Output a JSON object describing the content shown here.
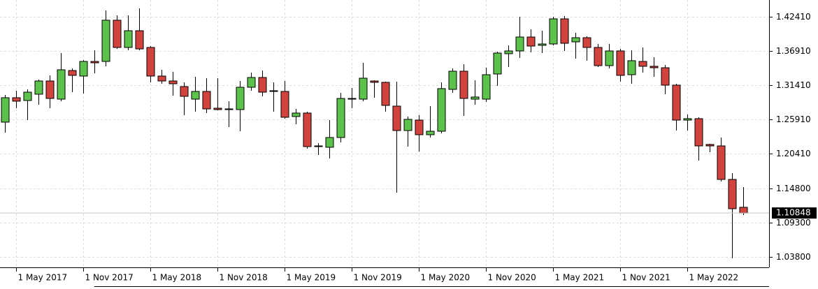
{
  "chart_data": {
    "type": "candlestick",
    "categories": [
      null,
      "1 May 2017",
      null,
      null,
      null,
      null,
      null,
      "1 Nov 2017",
      null,
      null,
      null,
      null,
      null,
      "1 May 2018",
      null,
      null,
      null,
      null,
      null,
      "1 Nov 2018",
      null,
      null,
      null,
      null,
      null,
      "1 May 2019",
      null,
      null,
      null,
      null,
      null,
      "1 Nov 2019",
      null,
      null,
      null,
      null,
      null,
      "1 May 2020",
      null,
      null,
      null,
      null,
      null,
      "1 Nov 2020",
      null,
      null,
      null,
      null,
      null,
      "1 May 2021",
      null,
      null,
      null,
      null,
      null,
      "1 Nov 2021",
      null,
      null,
      null,
      null,
      null,
      "1 May 2022",
      null,
      null,
      null,
      null,
      null
    ],
    "open": [
      1.2546,
      1.2939,
      1.2894,
      1.2995,
      1.3208,
      1.2916,
      1.3376,
      1.3287,
      1.3522,
      1.3522,
      1.4185,
      1.3747,
      1.4016,
      1.3747,
      1.3287,
      1.3208,
      1.3118,
      1.2916,
      1.304,
      1.277,
      1.2759,
      1.2748,
      1.3107,
      1.3264,
      1.3051,
      1.304,
      1.2636,
      1.2692,
      1.2153,
      1.2142,
      1.2299,
      1.2916,
      1.2916,
      1.3208,
      1.3186,
      1.2804,
      1.2411,
      1.2579,
      1.2344,
      1.24,
      1.3073,
      1.3365,
      1.2916,
      1.2916,
      1.332,
      1.3646,
      1.3691,
      1.3915,
      1.3781,
      1.3803,
      1.4207,
      1.3837,
      1.3904,
      1.3747,
      1.3455,
      1.3691,
      1.3309,
      1.3522,
      1.3444,
      1.3421,
      1.3141,
      1.2579,
      1.2602,
      1.2187,
      1.2164,
      1.1625,
      1.1177
    ],
    "high": [
      1.2984,
      1.3051,
      1.3073,
      1.3231,
      1.3298,
      1.3657,
      1.341,
      1.3545,
      1.3702,
      1.4342,
      1.4263,
      1.4263,
      1.4376,
      1.3769,
      1.3388,
      1.3354,
      1.3186,
      1.3275,
      1.3253,
      1.3253,
      1.2883,
      1.3208,
      1.3343,
      1.3376,
      1.3186,
      1.3208,
      1.2759,
      1.2714,
      1.2209,
      1.2579,
      1.3017,
      1.3096,
      1.35,
      1.3219,
      1.3197,
      1.3197,
      1.2636,
      1.2658,
      1.2804,
      1.3186,
      1.341,
      1.3477,
      1.3219,
      1.3421,
      1.368,
      1.3781,
      1.4241,
      1.4039,
      1.4016,
      1.4241,
      1.4252,
      1.3983,
      1.3926,
      1.3803,
      1.3803,
      1.3724,
      1.3702,
      1.3747,
      1.359,
      1.3466,
      1.3163,
      1.2669,
      1.2624,
      1.2198,
      1.2299,
      1.1726,
      1.1502
    ],
    "low": [
      1.2377,
      1.277,
      1.2579,
      1.2826,
      1.277,
      1.2883,
      1.3028,
      1.3006,
      1.3331,
      1.3444,
      1.3724,
      1.3702,
      1.3702,
      1.3186,
      1.3163,
      1.2972,
      1.2658,
      1.2714,
      1.2692,
      1.2737,
      1.2467,
      1.24,
      1.3051,
      1.2961,
      1.2714,
      1.2602,
      1.2512,
      1.2119,
      1.2018,
      1.1962,
      1.222,
      1.277,
      1.2883,
      1.2939,
      1.2714,
      1.1412,
      1.2153,
      1.2074,
      1.2299,
      1.2366,
      1.3017,
      1.2647,
      1.2826,
      1.2871,
      1.3129,
      1.3432,
      1.3578,
      1.3668,
      1.3657,
      1.3781,
      1.3691,
      1.3567,
      1.3534,
      1.3432,
      1.341,
      1.3197,
      1.3163,
      1.3343,
      1.3275,
      1.2995,
      1.2411,
      1.2411,
      1.1928,
      1.2063,
      1.1592,
      1.0357,
      1.1053
    ],
    "close": [
      1.2939,
      1.2883,
      1.3028,
      1.3208,
      1.2927,
      1.3388,
      1.3298,
      1.3522,
      1.35,
      1.4185,
      1.3747,
      1.4016,
      1.3724,
      1.3287,
      1.3208,
      1.3163,
      1.2961,
      1.304,
      1.2759,
      1.2748,
      1.2748,
      1.3107,
      1.3264,
      1.3028,
      1.304,
      1.2624,
      1.2692,
      1.2153,
      1.2164,
      1.2299,
      1.2927,
      1.2927,
      1.3253,
      1.3186,
      1.2815,
      1.2411,
      1.2591,
      1.2344,
      1.24,
      1.3085,
      1.3365,
      1.2927,
      1.295,
      1.3309,
      1.3657,
      1.3691,
      1.3915,
      1.3769,
      1.3803,
      1.4207,
      1.3814,
      1.3904,
      1.3747,
      1.3455,
      1.3691,
      1.3298,
      1.3534,
      1.3444,
      1.3421,
      1.3141,
      1.2579,
      1.2602,
      1.2164,
      1.2164,
      1.1625,
      1.1154,
      1.10848
    ],
    "last_price": 1.10848,
    "up_color": "#5cc24c",
    "down_color": "#d2433e",
    "ylim": [
      1.0211,
      1.451
    ],
    "yticks": [
      {
        "value": 1.038,
        "label": "1.03800"
      },
      {
        "value": 1.093,
        "label": "1.09300"
      },
      {
        "value": 1.148,
        "label": "1.14800"
      },
      {
        "value": 1.2041,
        "label": "1.20410"
      },
      {
        "value": 1.2591,
        "label": "1.25910"
      },
      {
        "value": 1.3141,
        "label": "1.31410"
      },
      {
        "value": 1.3691,
        "label": "1.36910"
      },
      {
        "value": 1.4241,
        "label": "1.42410"
      }
    ],
    "grid": true
  }
}
